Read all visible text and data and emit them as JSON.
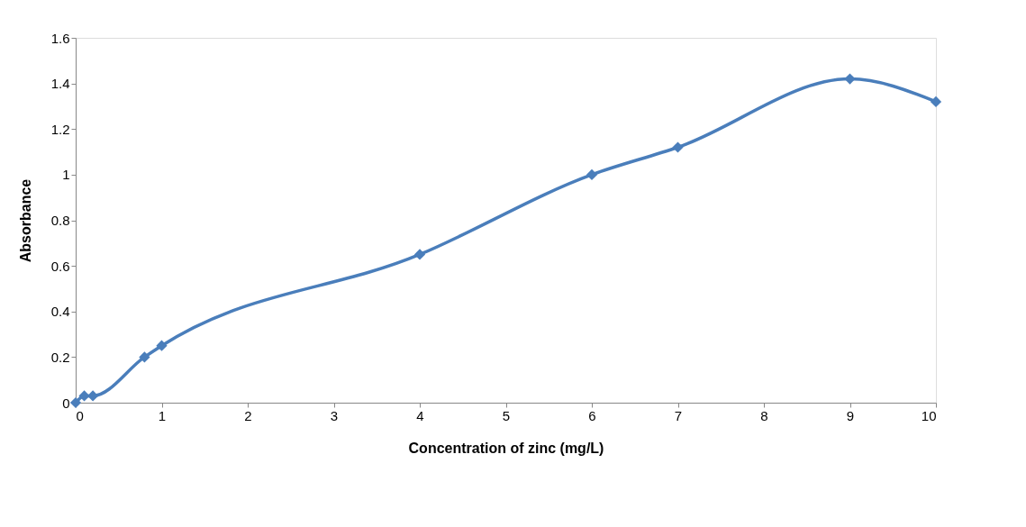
{
  "chart_data": {
    "type": "line",
    "xlabel": "Concentration of zinc (mg/L)",
    "ylabel": "Absorbance",
    "x": [
      0,
      0.1,
      0.2,
      0.8,
      1,
      4,
      6,
      7,
      9,
      10
    ],
    "series": [
      {
        "color": "#4a7ebb",
        "values": [
          0,
          0.03,
          0.03,
          0.2,
          0.25,
          0.65,
          1.0,
          1.12,
          1.42,
          1.32
        ]
      }
    ],
    "xlim": [
      0,
      10
    ],
    "xticks": [
      0,
      1,
      2,
      3,
      4,
      5,
      6,
      7,
      8,
      9,
      10
    ],
    "ylim": [
      0,
      1.6
    ],
    "yticks": [
      0,
      0.2,
      0.4,
      0.6,
      0.8,
      1,
      1.2,
      1.4,
      1.6
    ],
    "grid": false,
    "marker": "diamond",
    "line_style": "solid"
  }
}
